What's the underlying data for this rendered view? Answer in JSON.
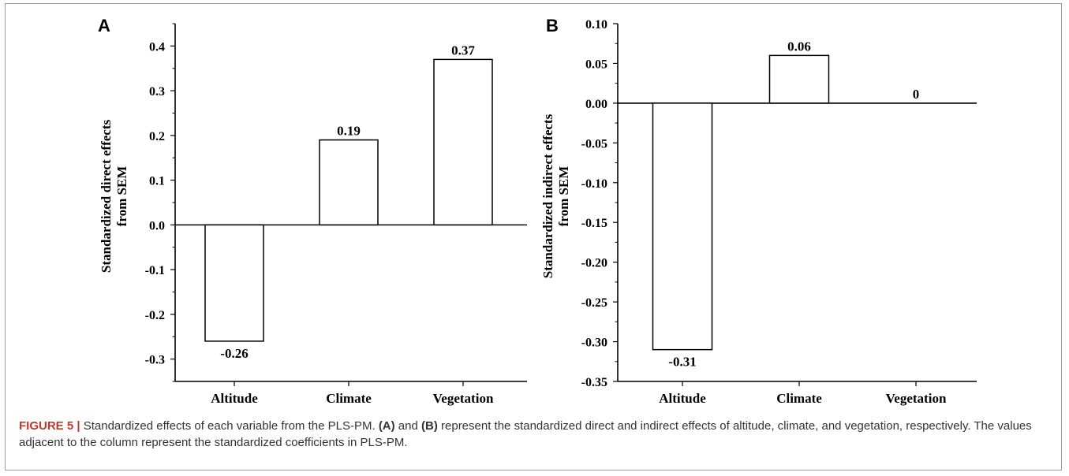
{
  "caption": {
    "figure_label": "FIGURE 5 |",
    "p1": " Standardized effects of each variable from the PLS-PM. ",
    "ref_a": "(A)",
    "p2": " and ",
    "ref_b": "(B)",
    "p3": " represent the standardized direct and indirect effects of altitude, climate, and vegetation, respectively. The values adjacent to the column represent the standardized coefficients in PLS-PM."
  },
  "chart_data": [
    {
      "type": "bar",
      "panel": "A",
      "categories": [
        "Altitude",
        "Climate",
        "Vegetation"
      ],
      "values": [
        -0.26,
        0.19,
        0.37
      ],
      "value_labels": [
        "-0.26",
        "0.19",
        "0.37"
      ],
      "ylabel": [
        "Standardized direct effects",
        "from SEM"
      ],
      "ylim": [
        -0.35,
        0.45
      ],
      "yticks": [
        -0.3,
        -0.2,
        -0.1,
        0.0,
        0.1,
        0.2,
        0.3,
        0.4
      ],
      "ytick_labels": [
        "-0.3",
        "-0.2",
        "-0.1",
        "0.0",
        "0.1",
        "0.2",
        "0.3",
        "0.4"
      ],
      "grid": false
    },
    {
      "type": "bar",
      "panel": "B",
      "categories": [
        "Altitude",
        "Climate",
        "Vegetation"
      ],
      "values": [
        -0.31,
        0.06,
        0
      ],
      "value_labels": [
        "-0.31",
        "0.06",
        "0"
      ],
      "ylabel": [
        "Standardized indirect effects",
        "from SEM"
      ],
      "ylim": [
        -0.35,
        0.1
      ],
      "yticks": [
        -0.35,
        -0.3,
        -0.25,
        -0.2,
        -0.15,
        -0.1,
        -0.05,
        0.0,
        0.05,
        0.1
      ],
      "ytick_labels": [
        "-0.35",
        "-0.30",
        "-0.25",
        "-0.20",
        "-0.15",
        "-0.10",
        "-0.05",
        "0.00",
        "0.05",
        "0.10"
      ],
      "grid": false
    }
  ]
}
